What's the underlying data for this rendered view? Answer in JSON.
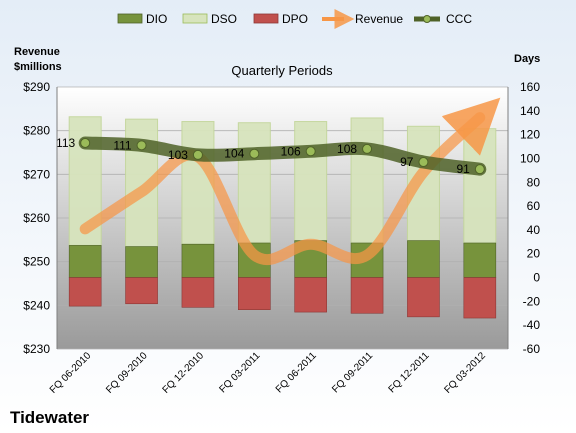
{
  "company": "Tidewater",
  "chart_data": {
    "type": "bar",
    "title": "Quarterly Periods",
    "y_left_label_line1": "Revenue",
    "y_left_label_line2": "$millions",
    "y_right_label": "Days",
    "categories": [
      "FQ 06-2010",
      "FQ 09-2010",
      "FQ 12-2010",
      "FQ 03-2011",
      "FQ 06-2011",
      "FQ 09-2011",
      "FQ 12-2011",
      "FQ 03-2012"
    ],
    "left_axis": {
      "min": 230,
      "max": 290,
      "ticks": [
        "$230",
        "$240",
        "$250",
        "$260",
        "$270",
        "$280",
        "$290"
      ],
      "tick_values": [
        230,
        240,
        250,
        260,
        270,
        280,
        290
      ]
    },
    "right_axis": {
      "min": -60,
      "max": 160,
      "ticks": [
        "-60",
        "-40",
        "-20",
        "0",
        "20",
        "40",
        "60",
        "80",
        "100",
        "120",
        "140",
        "160"
      ],
      "tick_values": [
        -60,
        -40,
        -20,
        0,
        20,
        40,
        60,
        80,
        100,
        120,
        140,
        160
      ]
    },
    "series": [
      {
        "name": "DIO",
        "axis": "right",
        "color": "#77933c",
        "values": [
          27,
          26,
          28,
          29,
          31,
          29,
          31,
          29
        ]
      },
      {
        "name": "DSO",
        "axis": "right",
        "color": "#d7e4bd",
        "values": [
          108,
          107,
          103,
          101,
          100,
          105,
          96,
          96
        ]
      },
      {
        "name": "DPO",
        "axis": "right",
        "color": "#c0504d",
        "values": [
          -24,
          -22,
          -25,
          -27,
          -29,
          -30,
          -33,
          -34
        ]
      },
      {
        "name": "Revenue",
        "axis": "left",
        "color": "#f79646",
        "values": [
          257.5,
          266,
          274,
          251.5,
          254,
          251.5,
          270.5,
          283
        ]
      },
      {
        "name": "CCC",
        "axis": "right",
        "color": "#4f6228",
        "values": [
          113,
          111,
          103,
          104,
          106,
          108,
          97,
          91
        ],
        "labels": [
          "113",
          "111",
          "103",
          "104",
          "106",
          "108",
          "97",
          "91"
        ]
      }
    ],
    "legend": {
      "position": "top",
      "items": [
        "DIO",
        "DSO",
        "DPO",
        "Revenue",
        "CCC"
      ]
    },
    "grid": true
  }
}
